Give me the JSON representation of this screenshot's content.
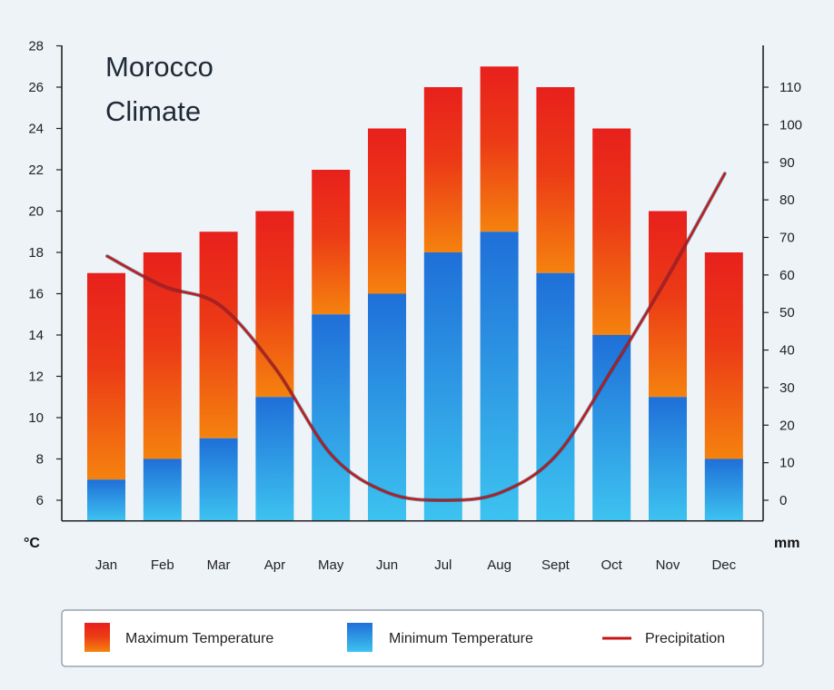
{
  "chart_data": {
    "type": "bar",
    "title_lines": [
      "Morocco",
      "Climate"
    ],
    "categories": [
      "Jan",
      "Feb",
      "Mar",
      "Apr",
      "May",
      "Jun",
      "Jul",
      "Aug",
      "Sept",
      "Oct",
      "Nov",
      "Dec"
    ],
    "series": [
      {
        "name": "Maximum Temperature",
        "values": [
          17,
          18,
          19,
          20,
          22,
          24,
          26,
          27,
          26,
          24,
          20,
          18
        ],
        "axis": "left"
      },
      {
        "name": "Minimum Temperature",
        "values": [
          7,
          8,
          9,
          11,
          15,
          16,
          18,
          19,
          17,
          14,
          11,
          8
        ],
        "axis": "left"
      },
      {
        "name": "Precipitation",
        "type": "line",
        "values": [
          65,
          57,
          52,
          35,
          12,
          2,
          0,
          2,
          12,
          35,
          60,
          87
        ],
        "axis": "right"
      }
    ],
    "y_left": {
      "min": 6,
      "max": 28,
      "ticks": [
        6,
        8,
        10,
        12,
        14,
        16,
        18,
        20,
        22,
        24,
        26,
        28
      ],
      "unit": "°C",
      "baseline": 5
    },
    "y_right": {
      "min": 0,
      "max": 110,
      "ticks": [
        0,
        10,
        20,
        30,
        40,
        50,
        60,
        70,
        80,
        90,
        100,
        110
      ],
      "unit": "mm"
    },
    "grid": false,
    "legend_position": "bottom",
    "colors": {
      "max_top": "#e8201c",
      "max_bottom": "#f5820e",
      "min_top": "#1f6fd8",
      "min_bottom": "#3dc3f0",
      "line": "#c41616",
      "line_shadow": "#26334d",
      "axis": "#222222"
    }
  }
}
